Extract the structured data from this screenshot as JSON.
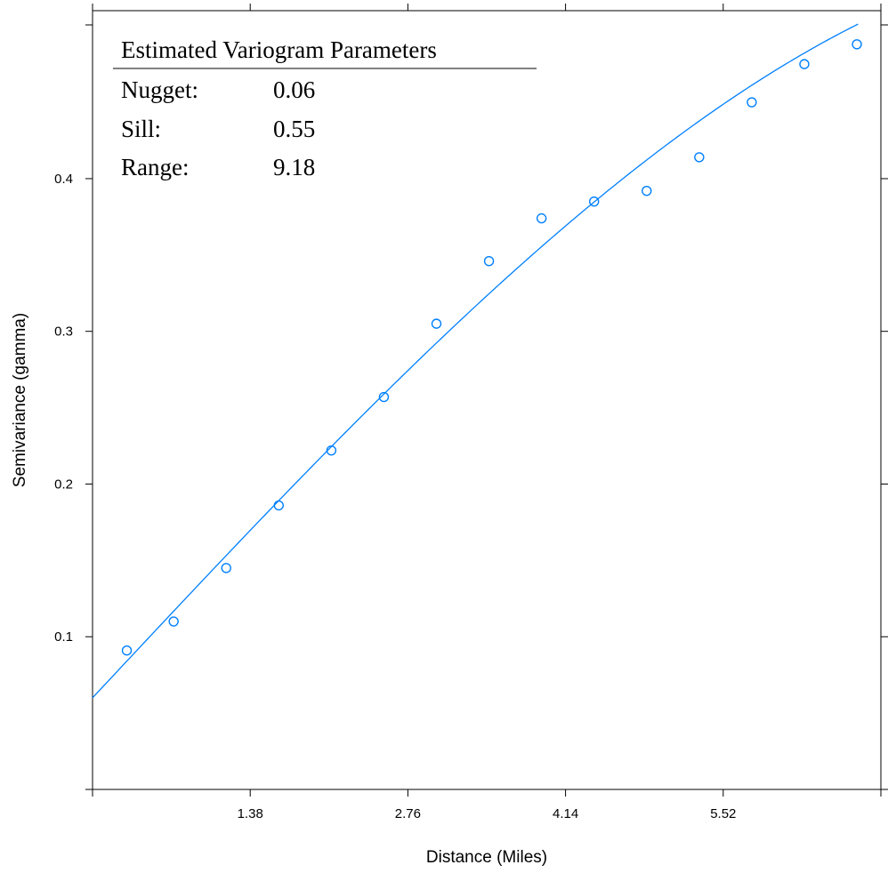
{
  "chart_data": {
    "type": "scatter",
    "xlabel": "Distance (Miles)",
    "ylabel": "Semivariance (gamma)",
    "xlim": [
      0,
      6.9
    ],
    "ylim": [
      0,
      0.51
    ],
    "x_ticks": [
      1.38,
      2.76,
      4.14,
      5.52
    ],
    "x_tick_labels": [
      "1.38",
      "2.76",
      "4.14",
      "5.52"
    ],
    "y_ticks": [
      0.1,
      0.2,
      0.3,
      0.4
    ],
    "y_tick_labels": [
      "0.1",
      "0.2",
      "0.3",
      "0.4"
    ],
    "grid": false,
    "points": {
      "x": [
        0.3,
        0.71,
        1.17,
        1.63,
        2.09,
        2.55,
        3.01,
        3.47,
        3.93,
        4.39,
        4.85,
        5.31,
        5.77,
        6.23,
        6.69
      ],
      "y": [
        0.091,
        0.11,
        0.145,
        0.186,
        0.222,
        0.257,
        0.305,
        0.346,
        0.374,
        0.385,
        0.392,
        0.414,
        0.45,
        0.475,
        0.488
      ]
    },
    "fit_curve": {
      "model": "spherical",
      "nugget": 0.06,
      "sill": 0.55,
      "range": 9.18,
      "x_max": 6.7
    },
    "inset": {
      "title": "Estimated Variogram Parameters",
      "rows": [
        {
          "label": "Nugget:",
          "value": "0.06"
        },
        {
          "label": "Sill:",
          "value": "0.55"
        },
        {
          "label": "Range:",
          "value": "9.18"
        }
      ]
    },
    "colors": {
      "series": "#0080ff",
      "axis": "#000000"
    }
  }
}
